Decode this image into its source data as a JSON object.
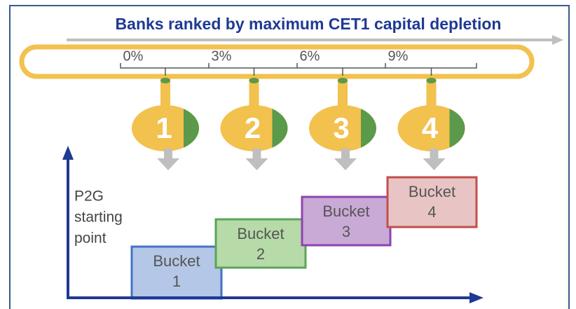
{
  "title": "Banks ranked by maximum CET1 capital depletion",
  "scale_labels": [
    "0%",
    "3%",
    "6%",
    "9%"
  ],
  "ranks": [
    "1",
    "2",
    "3",
    "4"
  ],
  "y_axis_label": [
    "P2G",
    "starting",
    "point"
  ],
  "buckets": [
    {
      "label": "Bucket",
      "number": "1"
    },
    {
      "label": "Bucket",
      "number": "2"
    },
    {
      "label": "Bucket",
      "number": "3"
    },
    {
      "label": "Bucket",
      "number": "4"
    }
  ]
}
